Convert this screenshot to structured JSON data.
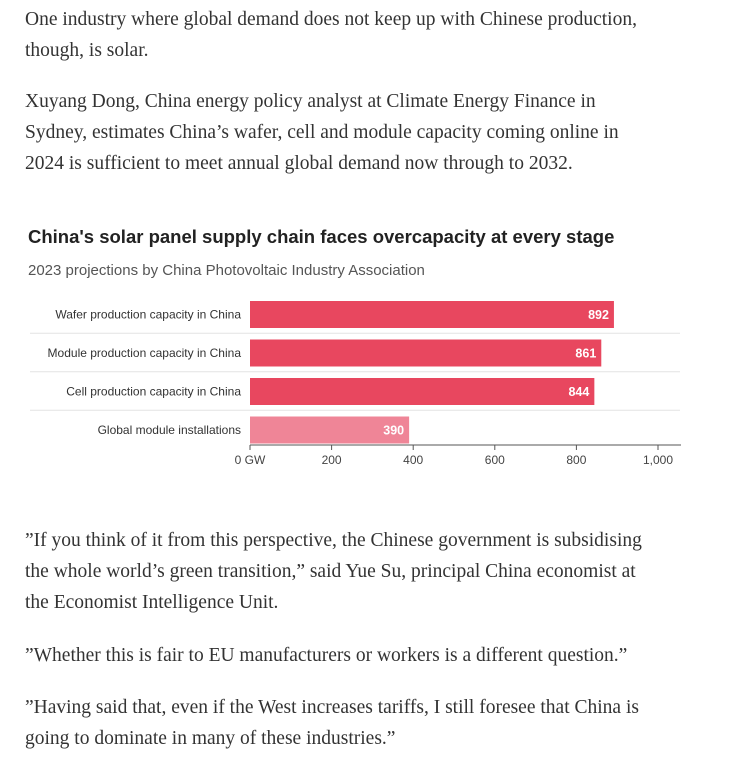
{
  "article": {
    "paragraph_1": [
      "One industry where global demand does not keep up with Chinese production,",
      "though, is solar."
    ],
    "paragraph_2": [
      "Xuyang Dong, China energy policy analyst at Climate Energy Finance in",
      "Sydney, estimates China’s wafer, cell and module capacity coming online in",
      "2024 is sufficient to meet annual global demand now through to 2032."
    ],
    "paragraph_3": [
      "”If you think of it from this perspective, the Chinese government is subsidising",
      "the whole world’s green transition,” said Yue Su, principal China economist at",
      "the Economist Intelligence Unit."
    ],
    "paragraph_4": [
      "”Whether this is fair to EU manufacturers or workers is a different question.”"
    ],
    "paragraph_5": [
      "”Having said that, even if the West increases tariffs, I still foresee that China is",
      "going to dominate in many of these industries.”"
    ]
  },
  "chart_data": {
    "type": "bar",
    "orientation": "horizontal",
    "title": "China's solar panel supply chain faces overcapacity at every stage",
    "subtitle": "2023 projections by China Photovoltaic Industry Association",
    "categories": [
      "Wafer production capacity in China",
      "Module production capacity in China",
      "Cell production capacity in China",
      "Global module installations"
    ],
    "values": [
      892,
      861,
      844,
      390
    ],
    "value_labels": [
      "892",
      "861",
      "844",
      "390"
    ],
    "bar_colors": [
      "#e8475f",
      "#e8475f",
      "#e8475f",
      "#ef8597"
    ],
    "xlim": [
      0,
      1000
    ],
    "x_ticks": [
      0,
      200,
      400,
      600,
      800,
      1000
    ],
    "x_tick_labels": [
      "0 GW",
      "200",
      "400",
      "600",
      "800",
      "1,000"
    ],
    "grid": true,
    "legend": "none"
  }
}
